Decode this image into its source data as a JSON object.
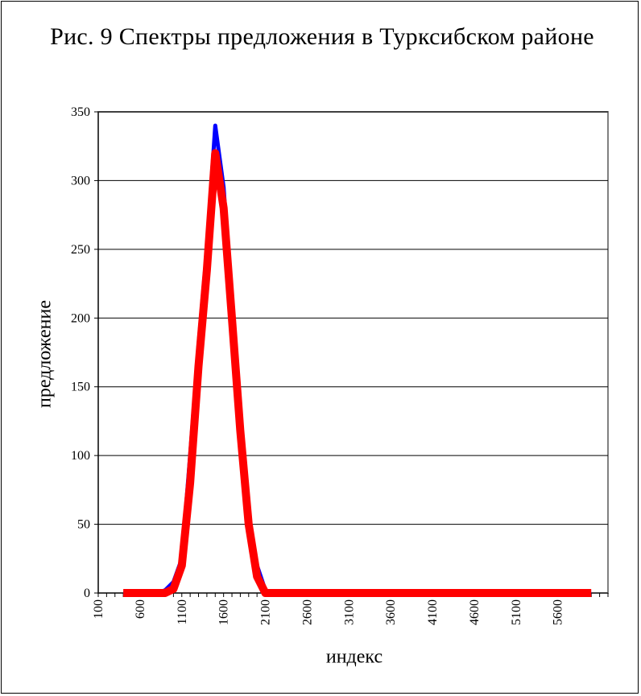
{
  "chart_data": {
    "type": "line",
    "title": "Рис. 9 Спектры предложения в Турксибском районе",
    "xlabel": "индекс",
    "ylabel": "предложение",
    "ylim": [
      0,
      350
    ],
    "yticks": [
      0,
      50,
      100,
      150,
      200,
      250,
      300,
      350
    ],
    "xticks": [
      100,
      600,
      1100,
      1600,
      2100,
      2600,
      3100,
      3600,
      4100,
      4600,
      5100,
      5600
    ],
    "grid": "horizontal",
    "x": [
      400,
      500,
      600,
      700,
      800,
      900,
      1000,
      1100,
      1200,
      1300,
      1400,
      1500,
      1600,
      1700,
      1800,
      1900,
      2000,
      2100,
      2200,
      2300,
      2400,
      2500,
      2600,
      2700,
      2800,
      2900,
      3000,
      3100,
      3200,
      3300,
      3400,
      3500,
      3600,
      3700,
      3800,
      3900,
      4000,
      4100,
      4200,
      4300,
      4400,
      4500,
      4600,
      4700,
      4800,
      4900,
      5000,
      5100,
      5200,
      5300,
      5400,
      5500,
      5600,
      5700,
      5800,
      5900,
      6000
    ],
    "series": [
      {
        "color": "#0000ff",
        "values": [
          0,
          0,
          0,
          0,
          0,
          2,
          8,
          25,
          100,
          180,
          250,
          340,
          295,
          210,
          110,
          55,
          20,
          2,
          0,
          0,
          0,
          0,
          0,
          0,
          0,
          0,
          0,
          0,
          0,
          0,
          0,
          0,
          0,
          0,
          0,
          0,
          0,
          0,
          0,
          0,
          0,
          0,
          0,
          0,
          0,
          0,
          0,
          0,
          0,
          0,
          0,
          0,
          0,
          0,
          0,
          0,
          0
        ]
      },
      {
        "color": "#ff0000",
        "values": [
          0,
          0,
          0,
          0,
          0,
          0,
          3,
          20,
          80,
          165,
          235,
          320,
          280,
          200,
          118,
          50,
          12,
          0,
          0,
          0,
          0,
          0,
          0,
          0,
          0,
          0,
          0,
          0,
          0,
          0,
          0,
          0,
          0,
          0,
          0,
          0,
          0,
          0,
          0,
          0,
          0,
          0,
          0,
          0,
          0,
          0,
          0,
          0,
          0,
          0,
          0,
          0,
          0,
          0,
          0,
          0,
          0
        ]
      }
    ]
  }
}
